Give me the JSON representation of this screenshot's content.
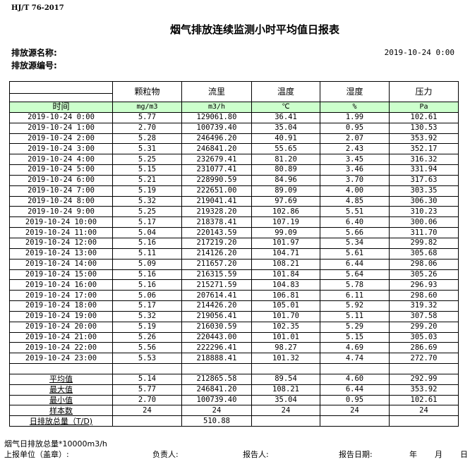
{
  "standard": "HJ/T  76-2017",
  "title": "烟气排放连续监测小时平均值日报表",
  "source_name_label": "排放源名称:",
  "source_code_label": "排放源编号:",
  "report_datetime": "2019-10-24 0:00",
  "table": {
    "columns": [
      "颗粒物",
      "流里",
      "温度",
      "湿度",
      "压力"
    ],
    "time_label": "时间",
    "units": [
      "mg/m3",
      "m3/h",
      "℃",
      "%",
      "Pa"
    ],
    "rows": [
      [
        "2019-10-24 0:00",
        "5.77",
        "129061.80",
        "36.41",
        "1.99",
        "102.61"
      ],
      [
        "2019-10-24 1:00",
        "2.70",
        "100739.40",
        "35.04",
        "0.95",
        "130.53"
      ],
      [
        "2019-10-24 2:00",
        "5.28",
        "246496.20",
        "40.91",
        "2.07",
        "353.92"
      ],
      [
        "2019-10-24 3:00",
        "5.31",
        "246841.20",
        "55.65",
        "2.43",
        "352.17"
      ],
      [
        "2019-10-24 4:00",
        "5.25",
        "232679.41",
        "81.20",
        "3.45",
        "316.32"
      ],
      [
        "2019-10-24 5:00",
        "5.15",
        "231077.41",
        "80.89",
        "3.46",
        "331.94"
      ],
      [
        "2019-10-24 6:00",
        "5.21",
        "228990.59",
        "84.96",
        "3.70",
        "317.63"
      ],
      [
        "2019-10-24 7:00",
        "5.19",
        "222651.00",
        "89.09",
        "4.00",
        "303.35"
      ],
      [
        "2019-10-24 8:00",
        "5.32",
        "219041.41",
        "97.69",
        "4.85",
        "306.30"
      ],
      [
        "2019-10-24 9:00",
        "5.25",
        "219328.20",
        "102.86",
        "5.51",
        "310.23"
      ],
      [
        "2019-10-24 10:00",
        "5.17",
        "218378.41",
        "107.19",
        "6.40",
        "300.06"
      ],
      [
        "2019-10-24 11:00",
        "5.04",
        "220143.59",
        "99.09",
        "5.66",
        "311.70"
      ],
      [
        "2019-10-24 12:00",
        "5.16",
        "217219.20",
        "101.97",
        "5.34",
        "299.82"
      ],
      [
        "2019-10-24 13:00",
        "5.11",
        "214126.20",
        "104.71",
        "5.61",
        "305.68"
      ],
      [
        "2019-10-24 14:00",
        "5.09",
        "211657.20",
        "108.21",
        "6.44",
        "298.06"
      ],
      [
        "2019-10-24 15:00",
        "5.16",
        "216315.59",
        "101.84",
        "5.64",
        "305.26"
      ],
      [
        "2019-10-24 16:00",
        "5.16",
        "215271.59",
        "104.83",
        "5.78",
        "296.93"
      ],
      [
        "2019-10-24 17:00",
        "5.06",
        "207614.41",
        "106.81",
        "6.11",
        "298.60"
      ],
      [
        "2019-10-24 18:00",
        "5.17",
        "214426.20",
        "105.01",
        "5.92",
        "319.32"
      ],
      [
        "2019-10-24 19:00",
        "5.32",
        "219056.41",
        "101.70",
        "5.11",
        "307.58"
      ],
      [
        "2019-10-24 20:00",
        "5.19",
        "216030.59",
        "102.35",
        "5.29",
        "299.20"
      ],
      [
        "2019-10-24 21:00",
        "5.26",
        "220443.00",
        "101.01",
        "5.15",
        "305.03"
      ],
      [
        "2019-10-24 22:00",
        "5.56",
        "222296.41",
        "98.27",
        "4.69",
        "286.69"
      ],
      [
        "2019-10-24 23:00",
        "5.53",
        "218888.41",
        "101.32",
        "4.74",
        "272.70"
      ]
    ],
    "summary": [
      [
        "平均值",
        "5.14",
        "212865.58",
        "89.54",
        "4.60",
        "292.99"
      ],
      [
        "最大值",
        "5.77",
        "246841.20",
        "108.21",
        "6.44",
        "353.92"
      ],
      [
        "最小值",
        "2.70",
        "100739.40",
        "35.04",
        "0.95",
        "102.61"
      ],
      [
        "样本数",
        "24",
        "24",
        "24",
        "24",
        "24"
      ],
      [
        "日排放总量（T/D)",
        "",
        "510.88",
        "",
        "",
        ""
      ]
    ]
  },
  "footer": {
    "note": "烟气日排放总量*10000m3/h",
    "unit_label": "上报单位（盖章）:",
    "responsible_label": "负责人:",
    "reporter_label": "报告人:",
    "report_date_label": "报告日期:",
    "year": "年",
    "month": "月",
    "day": "日"
  }
}
